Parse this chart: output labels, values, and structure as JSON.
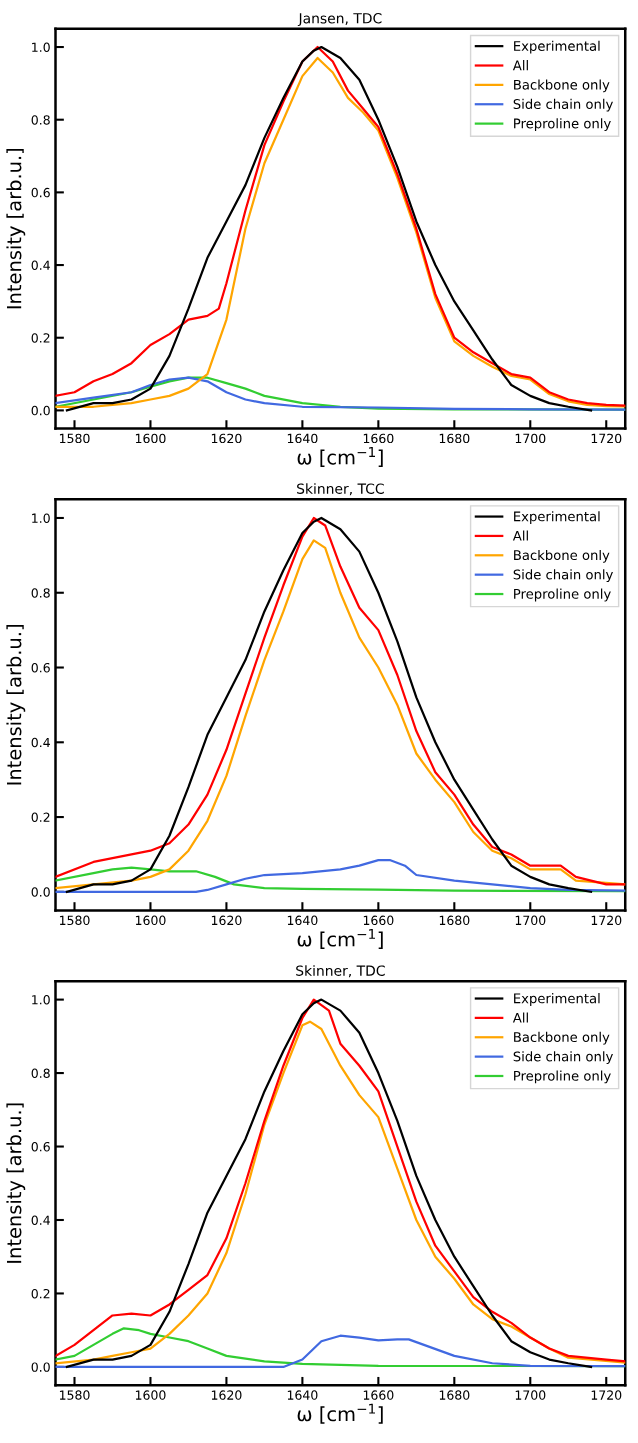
{
  "chart_data": [
    {
      "type": "line",
      "title": "Jansen, TDC",
      "xlabel": "ω [cm$^{−1}$]",
      "ylabel": "Intensity [arb.u.]",
      "xlim": [
        1575,
        1725
      ],
      "ylim": [
        -0.05,
        1.05
      ],
      "xticks": [
        1580,
        1600,
        1620,
        1640,
        1660,
        1680,
        1700,
        1720
      ],
      "yticks": [
        {
          "value": 0,
          "label": "0.0"
        },
        {
          "value": 0.2,
          "label": "0.2"
        },
        {
          "value": 0.4,
          "label": "0.4"
        },
        {
          "value": 0.6,
          "label": "0.6"
        },
        {
          "value": 0.8,
          "label": "0.8"
        },
        {
          "value": 1,
          "label": "1.0"
        }
      ],
      "grid": false,
      "legend": "top right",
      "series": [
        {
          "name": "Experimental",
          "color": "#000000",
          "x": [
            1578,
            1585,
            1590,
            1595,
            1600,
            1605,
            1610,
            1615,
            1620,
            1625,
            1630,
            1635,
            1640,
            1643,
            1645,
            1650,
            1655,
            1660,
            1665,
            1670,
            1675,
            1680,
            1685,
            1690,
            1695,
            1700,
            1705,
            1710,
            1716
          ],
          "values": [
            0.0,
            0.02,
            0.02,
            0.03,
            0.06,
            0.15,
            0.28,
            0.42,
            0.52,
            0.62,
            0.75,
            0.86,
            0.96,
            0.99,
            1.0,
            0.97,
            0.91,
            0.8,
            0.67,
            0.52,
            0.4,
            0.3,
            0.22,
            0.14,
            0.07,
            0.04,
            0.02,
            0.01,
            0.0
          ]
        },
        {
          "name": "All",
          "color": "#ff0000",
          "x": [
            1575,
            1580,
            1585,
            1590,
            1595,
            1600,
            1605,
            1610,
            1615,
            1618,
            1620,
            1625,
            1630,
            1635,
            1640,
            1644,
            1648,
            1652,
            1656,
            1660,
            1665,
            1670,
            1675,
            1680,
            1685,
            1690,
            1695,
            1700,
            1705,
            1710,
            1715,
            1720,
            1725
          ],
          "values": [
            0.04,
            0.05,
            0.08,
            0.1,
            0.13,
            0.18,
            0.21,
            0.25,
            0.26,
            0.28,
            0.35,
            0.55,
            0.73,
            0.85,
            0.96,
            1.0,
            0.96,
            0.88,
            0.83,
            0.78,
            0.65,
            0.5,
            0.32,
            0.2,
            0.16,
            0.13,
            0.1,
            0.09,
            0.05,
            0.03,
            0.02,
            0.015,
            0.013
          ]
        },
        {
          "name": "Backbone only",
          "color": "#ffa500",
          "x": [
            1575,
            1585,
            1590,
            1595,
            1600,
            1605,
            1610,
            1615,
            1620,
            1625,
            1630,
            1635,
            1640,
            1644,
            1648,
            1652,
            1656,
            1660,
            1665,
            1670,
            1675,
            1680,
            1685,
            1690,
            1695,
            1700,
            1705,
            1710,
            1715,
            1720,
            1725
          ],
          "values": [
            0.01,
            0.01,
            0.015,
            0.02,
            0.03,
            0.04,
            0.06,
            0.1,
            0.25,
            0.5,
            0.68,
            0.8,
            0.92,
            0.97,
            0.93,
            0.86,
            0.82,
            0.77,
            0.64,
            0.49,
            0.31,
            0.19,
            0.15,
            0.12,
            0.095,
            0.085,
            0.045,
            0.025,
            0.015,
            0.012,
            0.011
          ]
        },
        {
          "name": "Side chain only",
          "color": "#4169e1",
          "x": [
            1575,
            1585,
            1595,
            1600,
            1605,
            1610,
            1615,
            1620,
            1625,
            1630,
            1640,
            1660,
            1680,
            1700,
            1725
          ],
          "values": [
            0.02,
            0.035,
            0.05,
            0.07,
            0.085,
            0.09,
            0.08,
            0.05,
            0.03,
            0.02,
            0.01,
            0.008,
            0.004,
            0.003,
            0.002
          ]
        },
        {
          "name": "Preproline only",
          "color": "#32cd32",
          "x": [
            1575,
            1585,
            1595,
            1600,
            1605,
            1610,
            1615,
            1620,
            1625,
            1630,
            1640,
            1650,
            1660,
            1680,
            1725
          ],
          "values": [
            0.01,
            0.03,
            0.05,
            0.065,
            0.08,
            0.09,
            0.09,
            0.075,
            0.06,
            0.04,
            0.02,
            0.01,
            0.005,
            0.003,
            0.002
          ]
        }
      ]
    },
    {
      "type": "line",
      "title": "Skinner, TCC",
      "xlabel": "ω [cm$^{−1}$]",
      "ylabel": "Intensity [arb.u.]",
      "xlim": [
        1575,
        1725
      ],
      "ylim": [
        -0.05,
        1.05
      ],
      "xticks": [
        1580,
        1600,
        1620,
        1640,
        1660,
        1680,
        1700,
        1720
      ],
      "yticks": [
        {
          "value": 0,
          "label": "0.0"
        },
        {
          "value": 0.2,
          "label": "0.2"
        },
        {
          "value": 0.4,
          "label": "0.4"
        },
        {
          "value": 0.6,
          "label": "0.6"
        },
        {
          "value": 0.8,
          "label": "0.8"
        },
        {
          "value": 1,
          "label": "1.0"
        }
      ],
      "grid": false,
      "legend": "top right",
      "series": [
        {
          "name": "Experimental",
          "color": "#000000",
          "x": [
            1578,
            1585,
            1590,
            1595,
            1600,
            1605,
            1610,
            1615,
            1620,
            1625,
            1630,
            1635,
            1640,
            1643,
            1645,
            1650,
            1655,
            1660,
            1665,
            1670,
            1675,
            1680,
            1685,
            1690,
            1695,
            1700,
            1705,
            1710,
            1716
          ],
          "values": [
            0.0,
            0.02,
            0.02,
            0.03,
            0.06,
            0.15,
            0.28,
            0.42,
            0.52,
            0.62,
            0.75,
            0.86,
            0.96,
            0.99,
            1.0,
            0.97,
            0.91,
            0.8,
            0.67,
            0.52,
            0.4,
            0.3,
            0.22,
            0.14,
            0.07,
            0.04,
            0.02,
            0.01,
            0.0
          ]
        },
        {
          "name": "All",
          "color": "#ff0000",
          "x": [
            1575,
            1585,
            1590,
            1595,
            1600,
            1605,
            1610,
            1615,
            1620,
            1625,
            1630,
            1635,
            1640,
            1643,
            1646,
            1650,
            1655,
            1660,
            1665,
            1670,
            1675,
            1680,
            1685,
            1690,
            1695,
            1700,
            1705,
            1708,
            1712,
            1720,
            1725
          ],
          "values": [
            0.04,
            0.08,
            0.09,
            0.1,
            0.11,
            0.13,
            0.18,
            0.26,
            0.38,
            0.53,
            0.68,
            0.82,
            0.95,
            1.0,
            0.98,
            0.87,
            0.76,
            0.7,
            0.58,
            0.43,
            0.32,
            0.26,
            0.18,
            0.12,
            0.1,
            0.07,
            0.07,
            0.07,
            0.04,
            0.02,
            0.02
          ]
        },
        {
          "name": "Backbone only",
          "color": "#ffa500",
          "x": [
            1575,
            1585,
            1595,
            1600,
            1605,
            1610,
            1615,
            1620,
            1625,
            1630,
            1635,
            1640,
            1643,
            1646,
            1650,
            1655,
            1660,
            1665,
            1670,
            1675,
            1680,
            1685,
            1690,
            1695,
            1700,
            1705,
            1708,
            1712,
            1725
          ],
          "values": [
            0.01,
            0.02,
            0.03,
            0.04,
            0.06,
            0.11,
            0.19,
            0.31,
            0.47,
            0.62,
            0.75,
            0.89,
            0.94,
            0.92,
            0.8,
            0.68,
            0.6,
            0.5,
            0.37,
            0.3,
            0.24,
            0.16,
            0.11,
            0.09,
            0.06,
            0.06,
            0.06,
            0.03,
            0.02
          ]
        },
        {
          "name": "Side chain only",
          "color": "#4169e1",
          "x": [
            1575,
            1612,
            1615,
            1620,
            1625,
            1630,
            1640,
            1650,
            1655,
            1660,
            1663,
            1667,
            1670,
            1680,
            1690,
            1700,
            1710,
            1725
          ],
          "values": [
            0.0,
            0.0,
            0.005,
            0.02,
            0.035,
            0.045,
            0.05,
            0.06,
            0.07,
            0.085,
            0.085,
            0.07,
            0.045,
            0.03,
            0.02,
            0.01,
            0.005,
            0.003
          ]
        },
        {
          "name": "Preproline only",
          "color": "#32cd32",
          "x": [
            1575,
            1585,
            1590,
            1595,
            1600,
            1605,
            1612,
            1617,
            1622,
            1630,
            1640,
            1660,
            1680,
            1725
          ],
          "values": [
            0.03,
            0.05,
            0.06,
            0.065,
            0.06,
            0.055,
            0.055,
            0.04,
            0.02,
            0.01,
            0.008,
            0.006,
            0.003,
            0.002
          ]
        }
      ]
    },
    {
      "type": "line",
      "title": "Skinner, TDC",
      "xlabel": "ω [cm$^{−1}$]",
      "ylabel": "Intensity [arb.u.]",
      "xlim": [
        1575,
        1725
      ],
      "ylim": [
        -0.05,
        1.05
      ],
      "xticks": [
        1580,
        1600,
        1620,
        1640,
        1660,
        1680,
        1700,
        1720
      ],
      "yticks": [
        {
          "value": 0,
          "label": "0.0"
        },
        {
          "value": 0.2,
          "label": "0.2"
        },
        {
          "value": 0.4,
          "label": "0.4"
        },
        {
          "value": 0.6,
          "label": "0.6"
        },
        {
          "value": 0.8,
          "label": "0.8"
        },
        {
          "value": 1,
          "label": "1.0"
        }
      ],
      "grid": false,
      "legend": "top right",
      "series": [
        {
          "name": "Experimental",
          "color": "#000000",
          "x": [
            1578,
            1585,
            1590,
            1595,
            1600,
            1605,
            1610,
            1615,
            1620,
            1625,
            1630,
            1635,
            1640,
            1643,
            1645,
            1650,
            1655,
            1660,
            1665,
            1670,
            1675,
            1680,
            1685,
            1690,
            1695,
            1700,
            1705,
            1710,
            1716
          ],
          "values": [
            0.0,
            0.02,
            0.02,
            0.03,
            0.06,
            0.15,
            0.28,
            0.42,
            0.52,
            0.62,
            0.75,
            0.86,
            0.96,
            0.99,
            1.0,
            0.97,
            0.91,
            0.8,
            0.67,
            0.52,
            0.4,
            0.3,
            0.22,
            0.14,
            0.07,
            0.04,
            0.02,
            0.01,
            0.0
          ]
        },
        {
          "name": "All",
          "color": "#ff0000",
          "x": [
            1575,
            1580,
            1585,
            1590,
            1595,
            1600,
            1605,
            1610,
            1615,
            1620,
            1625,
            1630,
            1635,
            1640,
            1643,
            1647,
            1650,
            1655,
            1660,
            1665,
            1670,
            1675,
            1680,
            1685,
            1690,
            1695,
            1700,
            1705,
            1710,
            1720,
            1725
          ],
          "values": [
            0.03,
            0.06,
            0.1,
            0.14,
            0.145,
            0.14,
            0.17,
            0.21,
            0.25,
            0.35,
            0.5,
            0.67,
            0.82,
            0.95,
            1.0,
            0.97,
            0.88,
            0.82,
            0.75,
            0.6,
            0.45,
            0.33,
            0.26,
            0.19,
            0.15,
            0.12,
            0.08,
            0.05,
            0.03,
            0.02,
            0.015
          ]
        },
        {
          "name": "Backbone only",
          "color": "#ffa500",
          "x": [
            1575,
            1585,
            1590,
            1595,
            1600,
            1605,
            1610,
            1615,
            1620,
            1625,
            1630,
            1635,
            1640,
            1642,
            1645,
            1650,
            1655,
            1660,
            1665,
            1670,
            1675,
            1680,
            1685,
            1690,
            1695,
            1700,
            1705,
            1710,
            1725
          ],
          "values": [
            0.01,
            0.02,
            0.03,
            0.04,
            0.05,
            0.09,
            0.14,
            0.2,
            0.31,
            0.47,
            0.66,
            0.8,
            0.93,
            0.94,
            0.92,
            0.82,
            0.74,
            0.68,
            0.54,
            0.4,
            0.3,
            0.24,
            0.17,
            0.13,
            0.11,
            0.08,
            0.05,
            0.025,
            0.012
          ]
        },
        {
          "name": "Side chain only",
          "color": "#4169e1",
          "x": [
            1575,
            1635,
            1640,
            1645,
            1650,
            1655,
            1660,
            1665,
            1668,
            1672,
            1680,
            1690,
            1700,
            1725
          ],
          "values": [
            0.0,
            0.0,
            0.02,
            0.07,
            0.085,
            0.08,
            0.072,
            0.075,
            0.075,
            0.06,
            0.03,
            0.01,
            0.003,
            0.002
          ]
        },
        {
          "name": "Preproline only",
          "color": "#32cd32",
          "x": [
            1575,
            1580,
            1585,
            1590,
            1593,
            1597,
            1600,
            1605,
            1610,
            1615,
            1620,
            1630,
            1640,
            1660,
            1725
          ],
          "values": [
            0.02,
            0.03,
            0.06,
            0.09,
            0.105,
            0.1,
            0.09,
            0.08,
            0.07,
            0.05,
            0.03,
            0.015,
            0.008,
            0.003,
            0.002
          ]
        }
      ]
    }
  ]
}
